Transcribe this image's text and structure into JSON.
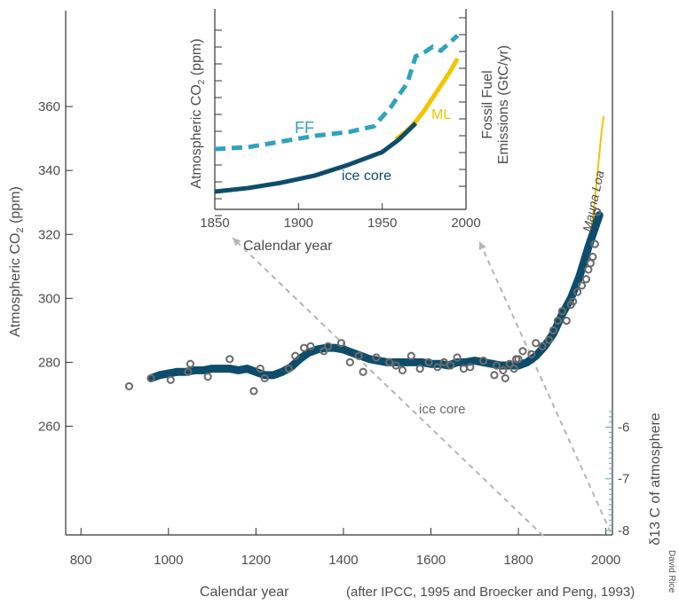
{
  "colors": {
    "ice_core": "#0d4d6b",
    "circles": "#6b6b6b",
    "mauna_loa": "#f2c500",
    "fossil_fuel": "#2fa3bf",
    "d13c_axis": "#4aa6b8",
    "arrows": "#b5b5b5",
    "axis": "#333333",
    "text": "#4d4d4d"
  },
  "chart_data": [
    {
      "type": "line",
      "name": "main",
      "xlabel": "Calendar year",
      "ylabel": "Atmospheric CO2 (ppm)",
      "ylabel_main": "Atmospheric CO",
      "ylabel_sub": "2",
      "ylabel_unit": " (ppm)",
      "xlim": [
        765,
        2015
      ],
      "ylim": [
        226,
        390
      ],
      "x_ticks": [
        800,
        1000,
        1200,
        1400,
        1600,
        1800,
        2000
      ],
      "x_tick_labels": [
        "800",
        "1000",
        "1200",
        "1400",
        "1600",
        "1800",
        "2000"
      ],
      "y_ticks": [
        260,
        280,
        300,
        320,
        340,
        360
      ],
      "y_tick_labels": [
        "260",
        "280",
        "300",
        "320",
        "340",
        "360"
      ],
      "right_axis": {
        "label": "δ13 C of atmosphere",
        "ticks": [
          -6,
          -7,
          -8
        ],
        "tick_labels": [
          "-6",
          "-7",
          "-8"
        ],
        "range": [
          -8,
          -5.7
        ]
      },
      "annotations": {
        "ice_core": "ice core",
        "mauna_loa": "Mauna Loa",
        "source": "(after IPCC, 1995 and Broecker and Peng, 1993)"
      },
      "series": [
        {
          "name": "ice core",
          "x": [
            960,
            980,
            1000,
            1020,
            1040,
            1060,
            1080,
            1100,
            1120,
            1140,
            1160,
            1180,
            1200,
            1220,
            1240,
            1260,
            1280,
            1300,
            1320,
            1340,
            1360,
            1380,
            1400,
            1420,
            1440,
            1460,
            1480,
            1500,
            1520,
            1540,
            1560,
            1580,
            1600,
            1620,
            1640,
            1660,
            1680,
            1700,
            1720,
            1740,
            1760,
            1780,
            1800,
            1820,
            1840,
            1860,
            1880,
            1900,
            1920,
            1940,
            1960,
            1975,
            1985
          ],
          "y": [
            275,
            276,
            276.5,
            277,
            277,
            277.5,
            277.5,
            278,
            278,
            278,
            277.5,
            278,
            277,
            276,
            276,
            277,
            278.5,
            281,
            283,
            284,
            284.5,
            284.5,
            284,
            283,
            282,
            281,
            280.5,
            280,
            280,
            280,
            280,
            280,
            279.5,
            279.5,
            279,
            280,
            280,
            280.5,
            280,
            279.5,
            279,
            279,
            279,
            280,
            282,
            285,
            289,
            295,
            300,
            307,
            316,
            322,
            326
          ]
        },
        {
          "name": "circles",
          "x": [
            910,
            960,
            1005,
            1045,
            1050,
            1090,
            1140,
            1195,
            1210,
            1220,
            1275,
            1290,
            1310,
            1325,
            1355,
            1365,
            1395,
            1415,
            1435,
            1445,
            1475,
            1505,
            1520,
            1535,
            1555,
            1575,
            1595,
            1615,
            1630,
            1645,
            1660,
            1675,
            1690,
            1720,
            1745,
            1750,
            1765,
            1770,
            1780,
            1790,
            1795,
            1800,
            1810,
            1830,
            1840,
            1855,
            1870,
            1880,
            1890,
            1900,
            1910,
            1920,
            1925,
            1935,
            1945,
            1955,
            1960,
            1965,
            1970,
            1975,
            1980
          ],
          "y": [
            272.5,
            275,
            274.5,
            277,
            279.5,
            275.5,
            281,
            271,
            278,
            275,
            278,
            282,
            284.5,
            285,
            283.5,
            285,
            286,
            280,
            282,
            277,
            281.5,
            280,
            279,
            277.5,
            282,
            278,
            280,
            278.5,
            280,
            279,
            281.5,
            278,
            278.5,
            280.5,
            276,
            279,
            277.5,
            275,
            279.5,
            278,
            281,
            281,
            283.5,
            282.5,
            286,
            285,
            287,
            290,
            293,
            296,
            293,
            298,
            299,
            302,
            304,
            306,
            309,
            311,
            313,
            317,
            327
          ]
        },
        {
          "name": "Mauna Loa",
          "x": [
            1958,
            1965,
            1970,
            1975,
            1980,
            1985,
            1990,
            1995
          ],
          "y": [
            315,
            320,
            325,
            331,
            338,
            345,
            352,
            357
          ]
        }
      ]
    },
    {
      "type": "line",
      "name": "inset",
      "xlabel": "Calendar year",
      "ylabel": "Atmospheric CO2 (ppm)",
      "ylabel_main": "Atmospheric CO",
      "ylabel_sub": "2",
      "ylabel_unit": " (ppm)",
      "right_label_line1": "Fossil Fuel",
      "right_label_line2": "Emissions (GtC/yr)",
      "xlim": [
        1850,
        2000
      ],
      "x_ticks": [
        1850,
        1900,
        1950,
        2000
      ],
      "x_tick_labels": [
        "1850",
        "1900",
        "1950",
        "2000"
      ],
      "annotations": {
        "ff": "FF",
        "ml": "ML",
        "ice_core": "ice core"
      },
      "series": [
        {
          "name": "ice core",
          "x": [
            1850,
            1870,
            1890,
            1910,
            1930,
            1950,
            1960,
            1970
          ],
          "y": [
            286,
            288,
            291,
            295,
            301,
            308,
            315,
            324
          ]
        },
        {
          "name": "ML",
          "x": [
            1958,
            1965,
            1970,
            1975,
            1980,
            1985,
            1990,
            1995
          ],
          "y": [
            315,
            320,
            325,
            331,
            338,
            345,
            352,
            360
          ]
        },
        {
          "name": "FF",
          "x": [
            1850,
            1870,
            1890,
            1910,
            1930,
            1945,
            1955,
            1965,
            1970,
            1975,
            1980,
            1985,
            1995
          ],
          "y": [
            0.3,
            0.4,
            0.7,
            1.0,
            1.2,
            1.5,
            2.5,
            3.8,
            5.2,
            5.4,
            5.7,
            5.5,
            6.3
          ]
        }
      ]
    }
  ],
  "credit": "David Rice"
}
